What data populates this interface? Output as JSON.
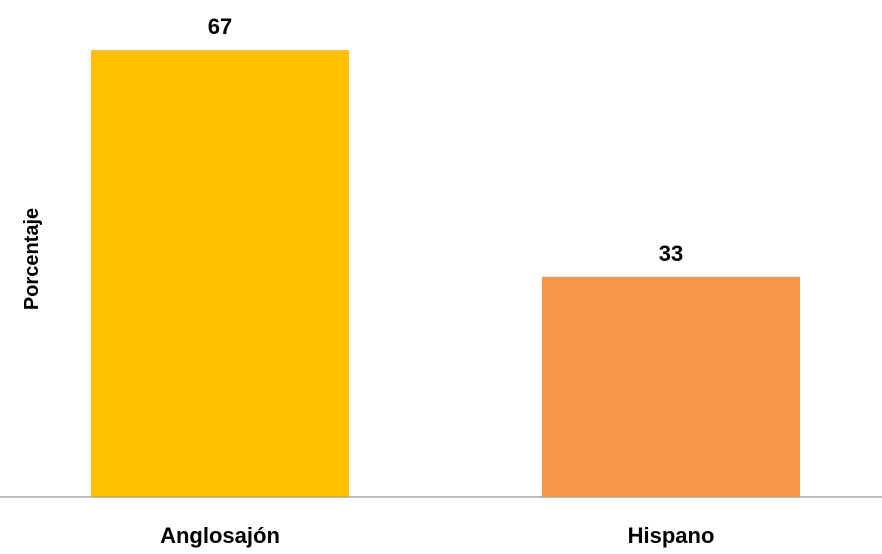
{
  "chart_data": {
    "type": "bar",
    "categories": [
      "Anglosajón",
      "Hispano"
    ],
    "values": [
      67,
      33
    ],
    "data_labels": [
      "67",
      "33"
    ],
    "ylabel": "Porcentaje",
    "xlabel": "",
    "ylim": [
      0,
      67
    ],
    "grid": false,
    "legend": "none",
    "colors": [
      "#FFC000",
      "#F79646"
    ],
    "axis_color": "#A6A6A6"
  }
}
